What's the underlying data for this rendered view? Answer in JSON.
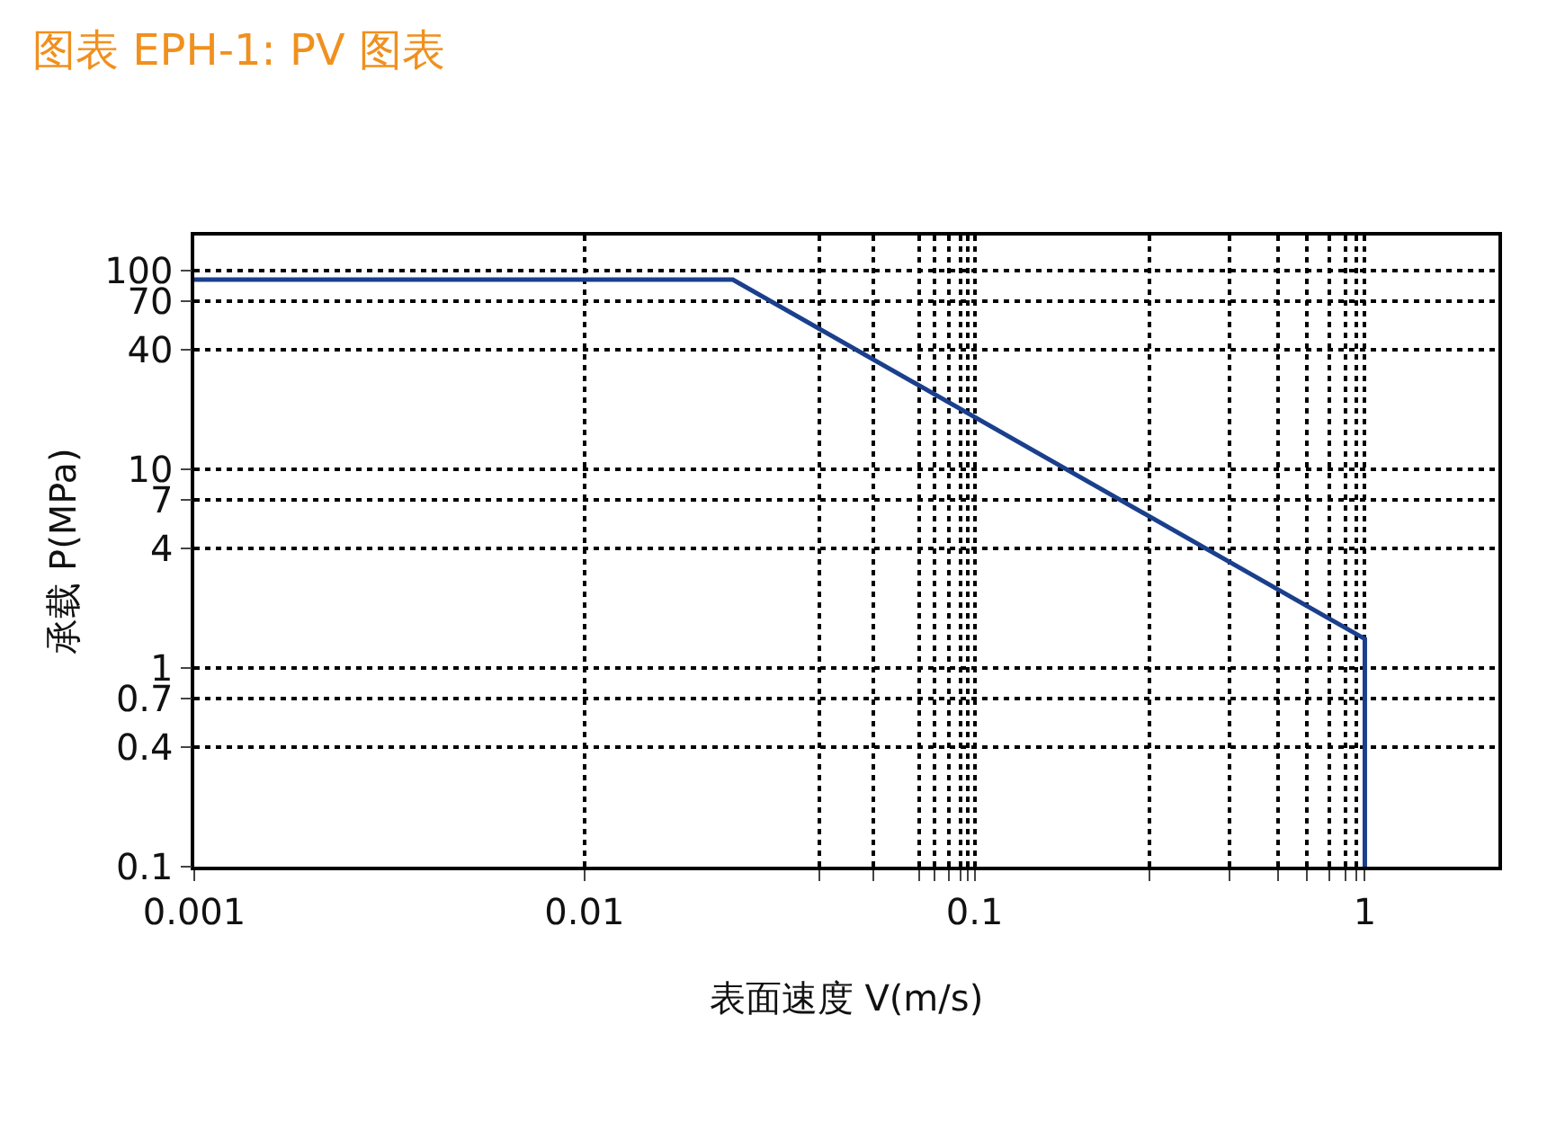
{
  "chart_data": {
    "type": "line",
    "title": "图表 EPH-1: PV 图表",
    "xlabel": "表面速度 V(m/s)",
    "ylabel": "承载 P(MPa)",
    "x": [
      0.001,
      0.024,
      1,
      1
    ],
    "series": [
      {
        "color": "#1a3f8c",
        "values": [
          90,
          90,
          1.4,
          0.1
        ]
      }
    ],
    "log": "xy",
    "xlim": [
      0.001,
      2.2
    ],
    "xticks": [
      0.001,
      0.01,
      {
        "value": 0.04,
        "label": null
      },
      {
        "value": 0.055,
        "label": null
      },
      {
        "value": 0.072,
        "label": null
      },
      {
        "value": 0.079,
        "label": null
      },
      {
        "value": 0.086,
        "label": null
      },
      {
        "value": 0.092,
        "label": null
      },
      {
        "value": 0.096,
        "label": null
      },
      0.1,
      {
        "value": 0.28,
        "label": null
      },
      {
        "value": 0.45,
        "label": null
      },
      {
        "value": 0.6,
        "label": null
      },
      {
        "value": 0.71,
        "label": null
      },
      {
        "value": 0.81,
        "label": null
      },
      {
        "value": 0.89,
        "label": null
      },
      {
        "value": 0.95,
        "label": null
      },
      1
    ],
    "ylim": [
      0.1,
      150
    ],
    "yticks": [
      0.1,
      0.4,
      0.7,
      1,
      4,
      7,
      10,
      40,
      70,
      100
    ],
    "grid": true,
    "marker": "none",
    "line_style": "solid"
  }
}
